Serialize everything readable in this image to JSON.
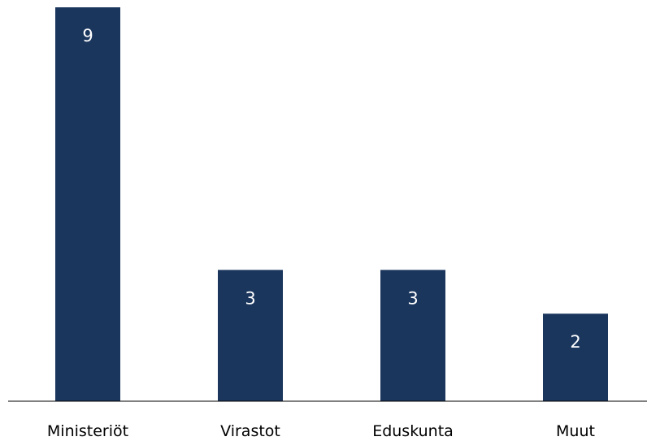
{
  "chart_data": {
    "type": "bar",
    "categories": [
      "Ministeriöt",
      "Virastot",
      "Eduskunta",
      "Muut"
    ],
    "values": [
      9,
      3,
      3,
      2
    ],
    "title": "",
    "xlabel": "",
    "ylabel": "",
    "ylim": [
      0,
      9
    ],
    "grid": false,
    "legend": "none",
    "show_value_labels": true,
    "show_y_axis": false,
    "colors": {
      "bar": "#1b365d",
      "value_label": "#ffffff",
      "axis": "#000000",
      "category_label": "#000000"
    }
  }
}
